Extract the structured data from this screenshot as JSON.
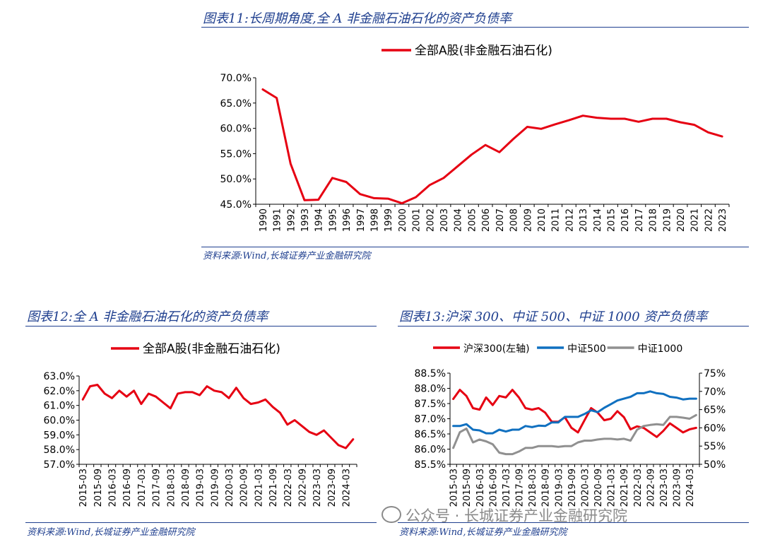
{
  "fig11": {
    "title": "图表11:长周期角度,全 A 非金融石油石化的资产负债率",
    "source": "资料来源:Wind,长城证券产业金融研究院"
  },
  "fig12": {
    "title": "图表12:全 A 非金融石油石化的资产负债率",
    "source": "资料来源:Wind,长城证券产业金融研究院"
  },
  "fig13": {
    "title": "图表13:沪深 300、中证 500、中证 1000 资产负债率",
    "source": "资料来源:Wind,长城证券产业金融研究院"
  },
  "watermark": "公众号 · 长城证券产业金融研究院",
  "chart_data": [
    {
      "id": "fig11",
      "type": "line",
      "legend_position": "top-center",
      "grid": false,
      "x": [
        "1990",
        "1991",
        "1992",
        "1993",
        "1994",
        "1995",
        "1996",
        "1997",
        "1998",
        "1999",
        "2000",
        "2001",
        "2002",
        "2003",
        "2004",
        "2005",
        "2006",
        "2007",
        "2008",
        "2009",
        "2010",
        "2011",
        "2012",
        "2013",
        "2014",
        "2015",
        "2016",
        "2017",
        "2018",
        "2019",
        "2020",
        "2021",
        "2022",
        "2023"
      ],
      "series": [
        {
          "name": "全部A股(非金融石油石化)",
          "color": "#e60012",
          "values": [
            67.7,
            66.0,
            53.0,
            45.8,
            45.9,
            50.2,
            49.4,
            47.0,
            46.2,
            46.1,
            45.2,
            46.4,
            48.8,
            50.2,
            52.5,
            54.8,
            56.7,
            55.3,
            57.9,
            60.3,
            59.9,
            60.8,
            61.6,
            62.5,
            62.1,
            61.9,
            61.9,
            61.3,
            61.9,
            61.9,
            61.2,
            60.7,
            59.2,
            58.4
          ]
        }
      ],
      "y_ticks": [
        "45.0%",
        "50.0%",
        "55.0%",
        "60.0%",
        "65.0%",
        "70.0%"
      ],
      "ylim": [
        45,
        70
      ]
    },
    {
      "id": "fig12",
      "type": "line",
      "legend_position": "top-center",
      "grid": false,
      "x": [
        "2015-03",
        "2015-06",
        "2015-09",
        "2015-12",
        "2016-03",
        "2016-06",
        "2016-09",
        "2016-12",
        "2017-03",
        "2017-06",
        "2017-09",
        "2017-12",
        "2018-03",
        "2018-06",
        "2018-09",
        "2018-12",
        "2019-03",
        "2019-06",
        "2019-09",
        "2019-12",
        "2020-03",
        "2020-06",
        "2020-09",
        "2020-12",
        "2021-03",
        "2021-06",
        "2021-09",
        "2021-12",
        "2022-03",
        "2022-06",
        "2022-09",
        "2022-12",
        "2023-03",
        "2023-06",
        "2023-09",
        "2023-12",
        "2024-03",
        "2024-06"
      ],
      "x_tick_labels": [
        "2015-03",
        "2015-09",
        "2016-03",
        "2016-09",
        "2017-03",
        "2017-09",
        "2018-03",
        "2018-09",
        "2019-03",
        "2019-09",
        "2020-03",
        "2020-09",
        "2021-03",
        "2021-09",
        "2022-03",
        "2022-09",
        "2023-03",
        "2023-09",
        "2024-03"
      ],
      "series": [
        {
          "name": "全部A股(非金融石油石化)",
          "color": "#e60012",
          "values": [
            61.4,
            62.3,
            62.4,
            61.8,
            61.5,
            62.0,
            61.6,
            62.0,
            61.1,
            61.8,
            61.6,
            61.2,
            60.8,
            61.8,
            61.9,
            61.9,
            61.7,
            62.3,
            62.0,
            61.9,
            61.5,
            62.2,
            61.5,
            61.1,
            61.2,
            61.4,
            60.9,
            60.5,
            59.7,
            60.0,
            59.6,
            59.2,
            59.0,
            59.3,
            58.8,
            58.3,
            58.1,
            58.7
          ]
        }
      ],
      "y_ticks": [
        "57.0%",
        "58.0%",
        "59.0%",
        "60.0%",
        "61.0%",
        "62.0%",
        "63.0%"
      ],
      "ylim": [
        57,
        63
      ]
    },
    {
      "id": "fig13",
      "type": "line",
      "legend_position": "top-center",
      "grid": false,
      "x": [
        "2015-03",
        "2015-06",
        "2015-09",
        "2015-12",
        "2016-03",
        "2016-06",
        "2016-09",
        "2016-12",
        "2017-03",
        "2017-06",
        "2017-09",
        "2017-12",
        "2018-03",
        "2018-06",
        "2018-09",
        "2018-12",
        "2019-03",
        "2019-06",
        "2019-09",
        "2019-12",
        "2020-03",
        "2020-06",
        "2020-09",
        "2020-12",
        "2021-03",
        "2021-06",
        "2021-09",
        "2021-12",
        "2022-03",
        "2022-06",
        "2022-09",
        "2022-12",
        "2023-03",
        "2023-06",
        "2023-09",
        "2023-12",
        "2024-03",
        "2024-06"
      ],
      "x_tick_labels": [
        "2015-03",
        "2015-09",
        "2016-03",
        "2016-09",
        "2017-03",
        "2017-09",
        "2018-03",
        "2018-09",
        "2019-03",
        "2019-09",
        "2020-03",
        "2020-09",
        "2021-03",
        "2021-09",
        "2022-03",
        "2022-09",
        "2023-03",
        "2023-09",
        "2024-03"
      ],
      "series": [
        {
          "name": "沪深300(左轴)",
          "axis": "left",
          "color": "#e60012",
          "values": [
            87.65,
            87.95,
            87.75,
            87.35,
            87.3,
            87.7,
            87.45,
            87.75,
            87.7,
            87.95,
            87.7,
            87.35,
            87.3,
            87.35,
            87.2,
            86.9,
            86.9,
            87.05,
            86.7,
            86.55,
            86.95,
            87.35,
            87.2,
            86.95,
            87.0,
            87.25,
            87.05,
            86.65,
            86.75,
            86.7,
            86.55,
            86.4,
            86.6,
            86.85,
            86.7,
            86.55,
            86.65,
            86.7
          ]
        },
        {
          "name": "中证500",
          "axis": "right",
          "color": "#1070c0",
          "values": [
            60.5,
            60.5,
            61.0,
            59.5,
            59.3,
            58.5,
            58.5,
            59.5,
            59.0,
            59.5,
            59.5,
            60.5,
            60.2,
            60.6,
            60.5,
            61.5,
            61.5,
            63.0,
            63.0,
            63.0,
            63.8,
            64.8,
            64.3,
            65.5,
            66.5,
            67.5,
            68.0,
            68.5,
            69.5,
            69.5,
            70.0,
            69.5,
            69.3,
            68.5,
            68.3,
            67.8,
            68.0,
            68.0
          ]
        },
        {
          "name": "中证1000",
          "axis": "right",
          "color": "#909090",
          "values": [
            54.5,
            58.8,
            59.8,
            56.0,
            56.8,
            56.3,
            55.5,
            53.2,
            52.8,
            52.8,
            53.5,
            54.5,
            54.5,
            55.0,
            55.0,
            55.0,
            54.8,
            55.0,
            55.0,
            56.0,
            56.5,
            56.5,
            56.8,
            57.0,
            57.0,
            56.8,
            57.0,
            56.5,
            59.5,
            60.5,
            60.8,
            61.0,
            60.8,
            63.0,
            63.0,
            62.8,
            62.5,
            63.5
          ]
        }
      ],
      "y_ticks_left": [
        "85.5%",
        "86.0%",
        "86.5%",
        "87.0%",
        "87.5%",
        "88.0%",
        "88.5%"
      ],
      "ylim_left": [
        85.5,
        88.5
      ],
      "y_ticks_right": [
        "50%",
        "55%",
        "60%",
        "65%",
        "70%",
        "75%"
      ],
      "ylim_right": [
        50,
        75
      ]
    }
  ]
}
